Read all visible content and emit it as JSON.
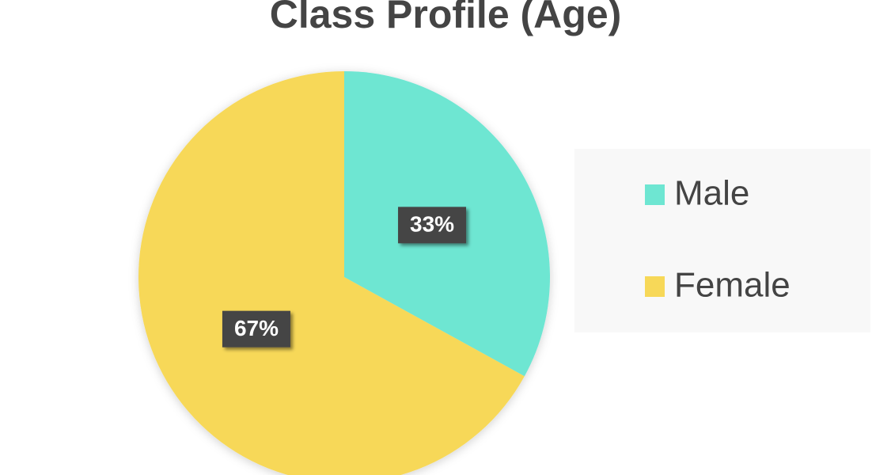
{
  "chart_data": {
    "type": "pie",
    "title": "Class Profile (Age)",
    "categories": [
      "Male",
      "Female"
    ],
    "values": [
      33,
      67
    ],
    "value_labels": [
      "33%",
      "67%"
    ],
    "colors": [
      "#6ee6d2",
      "#f7d858"
    ],
    "legend": "right"
  }
}
